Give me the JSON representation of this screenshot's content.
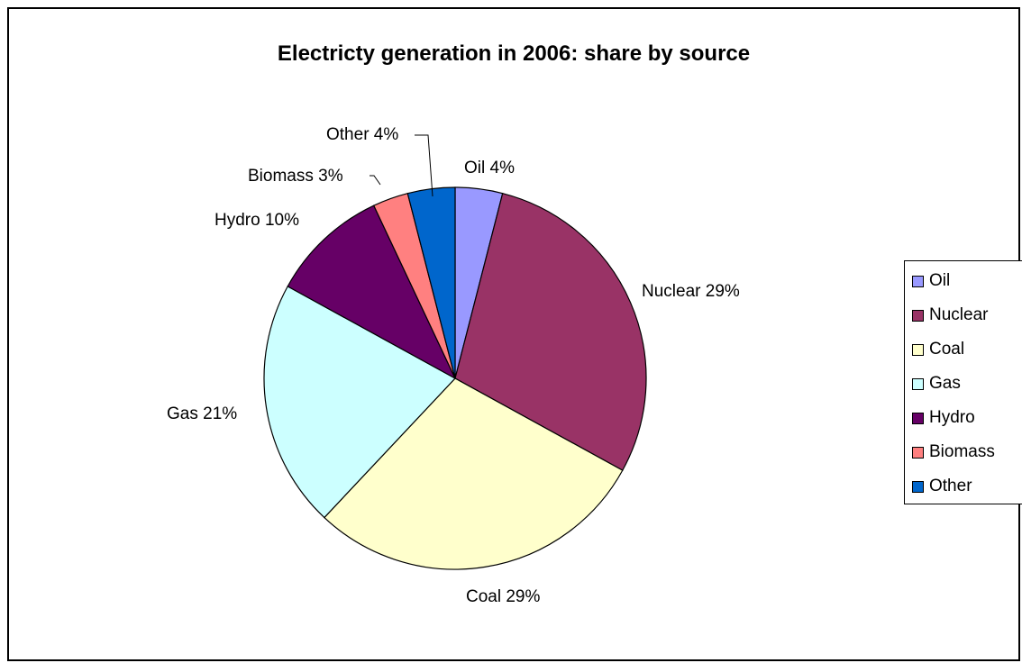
{
  "chart_data": {
    "type": "pie",
    "title": "Electricty generation in 2006: share by source",
    "categories": [
      "Oil",
      "Nuclear",
      "Coal",
      "Gas",
      "Hydro",
      "Biomass",
      "Other"
    ],
    "values": [
      4,
      29,
      29,
      21,
      10,
      3,
      4
    ],
    "unit": "%",
    "colors": [
      "#9999FF",
      "#993366",
      "#FFFFCC",
      "#CCFFFF",
      "#660066",
      "#FF8080",
      "#0066CC"
    ],
    "data_labels": [
      "Oil 4%",
      "Nuclear 29%",
      "Coal 29%",
      "Gas 21%",
      "Hydro 10%",
      "Biomass 3%",
      "Other 4%"
    ],
    "start": "12 o'clock, clockwise",
    "legend": "right"
  }
}
